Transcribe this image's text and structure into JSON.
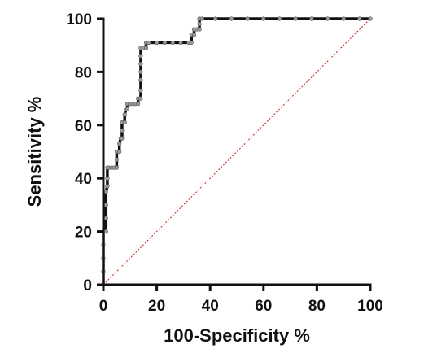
{
  "chart_data": {
    "type": "line",
    "title": "",
    "xlabel": "100-Specificity %",
    "ylabel": "Sensitivity %",
    "xlim": [
      0,
      100
    ],
    "ylim": [
      0,
      100
    ],
    "xticks": [
      0,
      20,
      40,
      60,
      80,
      100
    ],
    "yticks": [
      0,
      20,
      40,
      60,
      80,
      100
    ],
    "grid": false,
    "legend": "none",
    "series": [
      {
        "line_color": "#111111",
        "marker_color": "#9a9a9a",
        "points": [
          [
            0,
            0
          ],
          [
            0,
            5
          ],
          [
            0,
            10
          ],
          [
            0,
            15
          ],
          [
            0,
            20
          ],
          [
            1,
            20
          ],
          [
            1,
            25
          ],
          [
            1,
            30
          ],
          [
            1,
            35
          ],
          [
            1.5,
            37
          ],
          [
            1.5,
            40
          ],
          [
            1.5,
            44
          ],
          [
            2,
            44
          ],
          [
            3,
            44
          ],
          [
            4,
            44
          ],
          [
            5,
            44
          ],
          [
            5,
            47
          ],
          [
            5,
            50
          ],
          [
            6,
            50
          ],
          [
            6,
            53
          ],
          [
            6.5,
            55
          ],
          [
            7,
            55
          ],
          [
            7,
            58
          ],
          [
            7,
            61
          ],
          [
            8,
            61
          ],
          [
            8,
            64
          ],
          [
            8.5,
            66
          ],
          [
            9,
            66
          ],
          [
            9,
            68
          ],
          [
            10,
            68
          ],
          [
            11,
            68
          ],
          [
            12,
            68
          ],
          [
            13,
            68
          ],
          [
            13,
            70
          ],
          [
            14,
            70
          ],
          [
            14,
            73
          ],
          [
            14,
            77
          ],
          [
            14,
            80
          ],
          [
            14,
            83
          ],
          [
            14,
            86
          ],
          [
            14,
            89
          ],
          [
            15,
            89
          ],
          [
            16,
            89
          ],
          [
            16,
            91
          ],
          [
            17,
            91
          ],
          [
            20,
            91
          ],
          [
            23,
            91
          ],
          [
            26,
            91
          ],
          [
            29,
            91
          ],
          [
            32,
            91
          ],
          [
            33,
            91
          ],
          [
            33,
            94
          ],
          [
            34,
            94
          ],
          [
            34,
            96
          ],
          [
            35,
            96
          ],
          [
            36,
            96
          ],
          [
            36,
            98
          ],
          [
            36,
            100
          ],
          [
            37,
            100
          ],
          [
            42,
            100
          ],
          [
            48,
            100
          ],
          [
            54,
            100
          ],
          [
            60,
            100
          ],
          [
            66,
            100
          ],
          [
            72,
            100
          ],
          [
            78,
            100
          ],
          [
            84,
            100
          ],
          [
            90,
            100
          ],
          [
            96,
            100
          ],
          [
            100,
            100
          ]
        ]
      }
    ],
    "reference_line": {
      "style": "dotted",
      "color": "#c0392b",
      "points": [
        [
          0,
          0
        ],
        [
          100,
          100
        ]
      ]
    }
  }
}
